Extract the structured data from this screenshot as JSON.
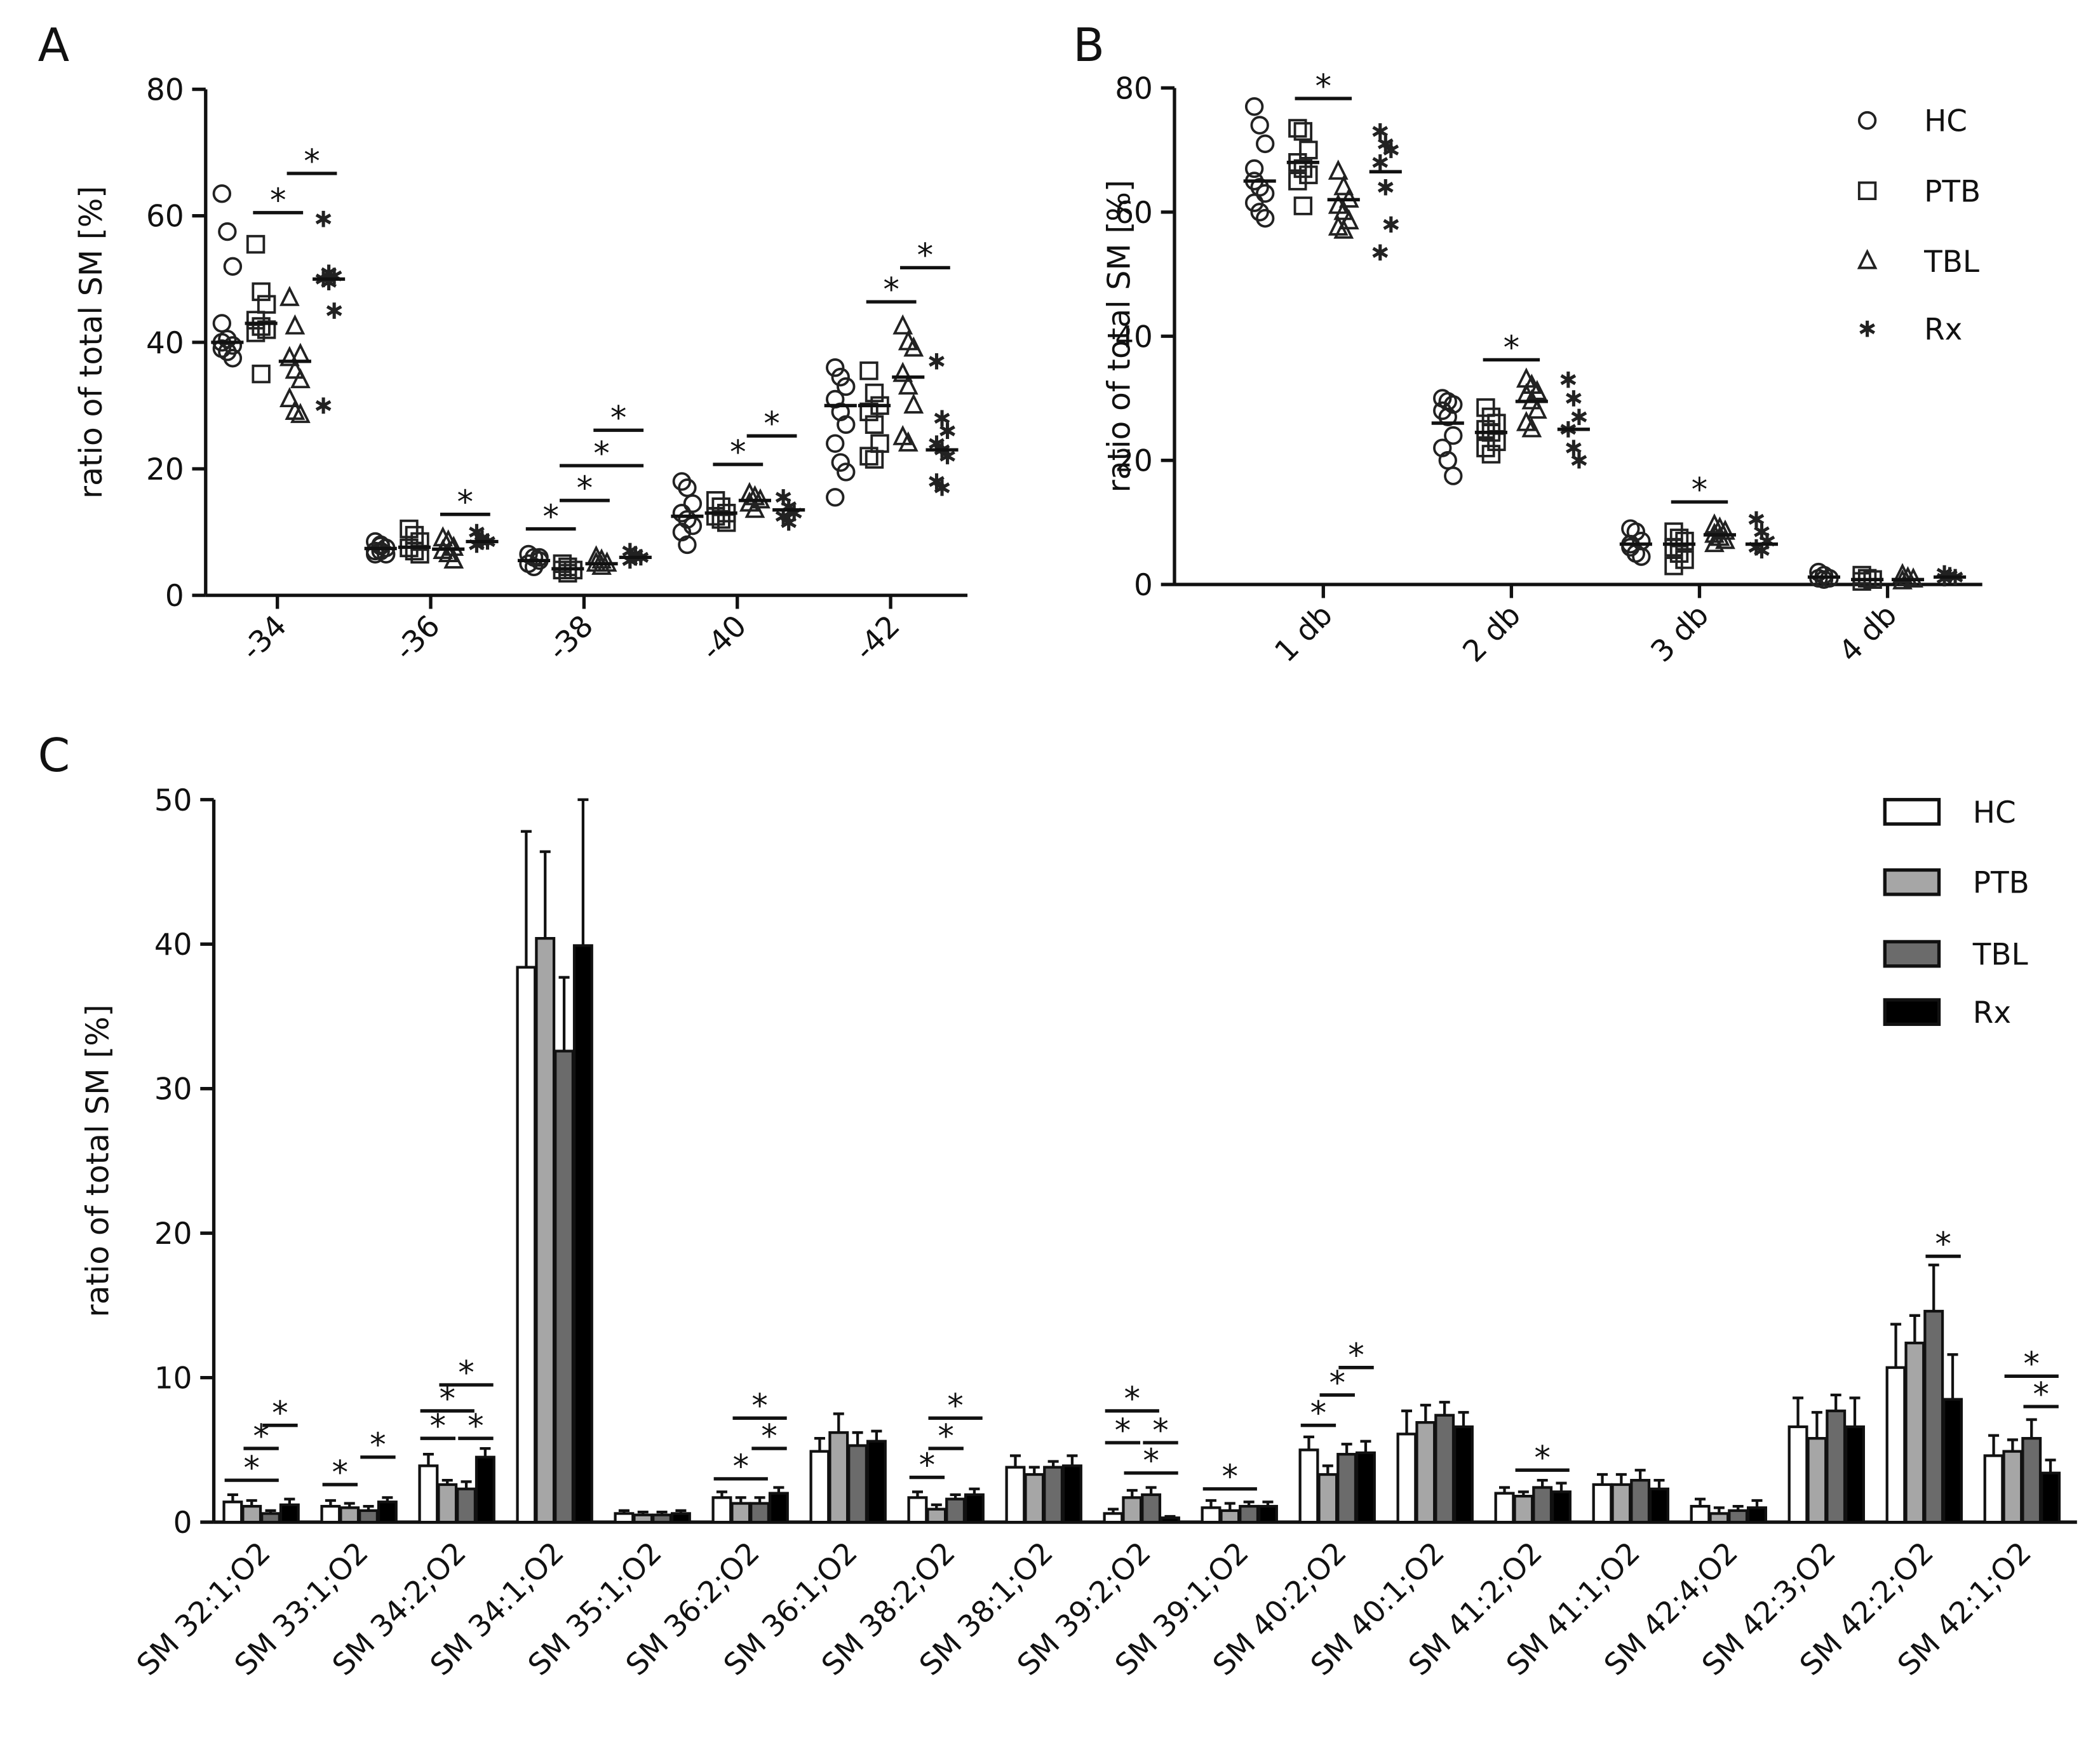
{
  "chart_data": [
    {
      "type": "strip",
      "panel": "A",
      "ylabel": "ratio of total SM [%]",
      "categories": [
        "-34",
        "-36",
        "-38",
        "-40",
        "-42"
      ],
      "ylim": [
        0,
        80
      ],
      "yticks": [
        0,
        20,
        40,
        60,
        80
      ],
      "series": [
        {
          "marker": "circle",
          "color": "#222222",
          "values": [
            [
              63.5,
              57.5,
              52,
              43,
              40.5,
              39.5,
              39,
              38.5,
              37.5,
              40
            ],
            [
              8.5,
              8,
              7.5,
              7,
              7,
              6.5,
              6.5,
              7.8
            ],
            [
              6.5,
              6,
              5.5,
              5,
              4.5,
              6
            ],
            [
              18,
              17,
              14.5,
              13,
              12,
              11,
              10,
              8
            ],
            [
              36,
              34.5,
              33,
              31,
              29,
              27,
              24,
              21,
              19.5,
              15.5
            ]
          ],
          "means": [
            40,
            7.4,
            5.5,
            12.5,
            30
          ]
        },
        {
          "marker": "square",
          "color": "#222222",
          "values": [
            [
              55.5,
              48,
              46,
              43.5,
              42.5,
              42,
              41.5,
              35
            ],
            [
              10.5,
              9.5,
              8.5,
              7.5,
              7,
              6.5
            ],
            [
              5,
              4.5,
              4,
              4,
              3.5
            ],
            [
              15,
              14,
              13,
              12.5,
              12,
              11.5
            ],
            [
              35.5,
              32,
              30,
              29,
              27,
              24,
              22,
              21.5
            ]
          ],
          "means": [
            43,
            7.6,
            4.2,
            13,
            30
          ]
        },
        {
          "marker": "triangle",
          "color": "#222222",
          "values": [
            [
              47,
              42.5,
              38,
              37.5,
              35.5,
              34,
              31,
              29,
              28.5
            ],
            [
              9,
              8.5,
              7.5,
              7,
              6.5,
              5.5
            ],
            [
              6,
              5.5,
              5,
              5,
              4.5
            ],
            [
              16,
              15.5,
              15,
              14.5,
              13.5
            ],
            [
              42.5,
              40,
              39,
              35,
              33,
              30,
              25,
              24
            ]
          ],
          "means": [
            37,
            7.3,
            5,
            15,
            34.5
          ]
        },
        {
          "marker": "asterisk",
          "color": "#222222",
          "values": [
            [
              59.5,
              51,
              50.5,
              50,
              49.5,
              45,
              30
            ],
            [
              10,
              9,
              8.5,
              8,
              8.5
            ],
            [
              7,
              6.5,
              6,
              5.5,
              6
            ],
            [
              15.5,
              14,
              13,
              12.5,
              11.5
            ],
            [
              37,
              28,
              26,
              24,
              23,
              22,
              18,
              17
            ]
          ],
          "means": [
            50,
            8.5,
            6,
            13.5,
            23
          ]
        }
      ],
      "significance": [
        {
          "category": 0,
          "from": 1,
          "to": 2,
          "y": 60.5,
          "label": "*"
        },
        {
          "category": 0,
          "from": 2,
          "to": 3,
          "y": 66.7,
          "label": "*"
        },
        {
          "category": 1,
          "from": 2,
          "to": 3,
          "y": 12.8,
          "label": "*"
        },
        {
          "category": 2,
          "from": 0,
          "to": 1,
          "y": 10.5,
          "label": "*"
        },
        {
          "category": 2,
          "from": 1,
          "to": 2,
          "y": 15,
          "label": "*"
        },
        {
          "category": 2,
          "from": 1,
          "to": 3,
          "y": 20.5,
          "label": "*"
        },
        {
          "category": 2,
          "from": 2,
          "to": 3,
          "y": 26.1,
          "label": "*"
        },
        {
          "category": 3,
          "from": 1,
          "to": 2,
          "y": 20.7,
          "label": "*"
        },
        {
          "category": 3,
          "from": 2,
          "to": 3,
          "y": 25.2,
          "label": "*"
        },
        {
          "category": 4,
          "from": 1,
          "to": 2,
          "y": 46.4,
          "label": "*"
        },
        {
          "category": 4,
          "from": 2,
          "to": 3,
          "y": 51.8,
          "label": "*"
        }
      ]
    },
    {
      "type": "strip",
      "panel": "B",
      "ylabel": "ratio of total SM [%]",
      "categories": [
        "1 db",
        "2 db",
        "3 db",
        "4 db"
      ],
      "ylim": [
        0,
        80
      ],
      "yticks": [
        0,
        20,
        40,
        60,
        80
      ],
      "legend": "upper right",
      "series": [
        {
          "name": "HC",
          "marker": "circle",
          "color": "#222222",
          "values": [
            [
              77,
              74,
              71,
              67,
              64,
              63,
              61.5,
              60,
              59,
              65
            ],
            [
              30,
              29.5,
              29,
              28,
              27,
              24,
              22,
              20,
              17.5
            ],
            [
              9,
              8.5,
              7,
              6,
              5,
              4.5,
              6.5
            ],
            [
              2,
              1.5,
              1,
              1,
              0.8
            ]
          ],
          "means": [
            65,
            26,
            6.5,
            1.2
          ]
        },
        {
          "name": "PTB",
          "marker": "square",
          "color": "#222222",
          "values": [
            [
              73.5,
              73,
              70,
              68,
              67,
              66,
              65,
              61
            ],
            [
              28.5,
              27,
              26,
              25,
              24.5,
              23,
              22,
              21
            ],
            [
              8.5,
              7.5,
              7,
              6,
              5,
              4,
              3
            ],
            [
              1.5,
              1,
              0.8,
              0.5
            ]
          ],
          "means": [
            68,
            24.5,
            6.5,
            0.8
          ]
        },
        {
          "name": "TBL",
          "marker": "triangle",
          "color": "#222222",
          "values": [
            [
              66.5,
              64,
              62,
              61,
              60,
              58.5,
              57.5,
              57
            ],
            [
              33,
              32,
              31,
              30.5,
              29.5,
              28,
              26,
              25
            ],
            [
              9.5,
              9,
              8.5,
              8,
              7.5,
              7,
              6.5
            ],
            [
              1.5,
              1,
              0.8,
              0.5
            ]
          ],
          "means": [
            62,
            29.5,
            8,
            0.8
          ]
        },
        {
          "name": "Rx",
          "marker": "asterisk",
          "color": "#222222",
          "values": [
            [
              73,
              71,
              70,
              68,
              64,
              58,
              53.5
            ],
            [
              33,
              30,
              27,
              25,
              22,
              20
            ],
            [
              10.5,
              8.5,
              7,
              6,
              5.5
            ],
            [
              1.8,
              1.5,
              1.2,
              1
            ]
          ],
          "means": [
            66.5,
            25,
            6.5,
            1.2
          ]
        }
      ],
      "significance": [
        {
          "category": 0,
          "from": 1,
          "to": 2,
          "y": 78.3,
          "label": "*"
        },
        {
          "category": 1,
          "from": 1,
          "to": 2,
          "y": 36.2,
          "label": "*"
        },
        {
          "category": 2,
          "from": 1,
          "to": 2,
          "y": 13.3,
          "label": "*"
        }
      ]
    },
    {
      "type": "bar",
      "panel": "C",
      "ylabel": "ratio of total SM [%]",
      "categories": [
        "SM 32:1;O2",
        "SM 33:1;O2",
        "SM 34:2;O2",
        "SM 34:1;O2",
        "SM 35:1;O2",
        "SM 36:2;O2",
        "SM 36:1;O2",
        "SM 38:2;O2",
        "SM 38:1;O2",
        "SM 39:2;O2",
        "SM 39:1;O2",
        "SM 40:2;O2",
        "SM 40:1;O2",
        "SM 41:2;O2",
        "SM 41:1;O2",
        "SM 42:4;O2",
        "SM 42:3;O2",
        "SM 42:2;O2",
        "SM 42:1;O2"
      ],
      "ylim": [
        0,
        50
      ],
      "yticks": [
        0,
        10,
        20,
        30,
        40,
        50
      ],
      "legend": "upper right",
      "series": [
        {
          "name": "HC",
          "color": "#ffffff",
          "values": [
            1.4,
            1.1,
            3.9,
            38.4,
            0.6,
            1.7,
            4.9,
            1.7,
            3.8,
            0.6,
            1.0,
            5.0,
            6.1,
            2.0,
            2.6,
            1.1,
            6.6,
            10.7,
            4.6
          ],
          "errors": [
            0.5,
            0.4,
            0.8,
            9.4,
            0.2,
            0.4,
            0.9,
            0.4,
            0.8,
            0.3,
            0.5,
            0.9,
            1.6,
            0.4,
            0.7,
            0.5,
            2.0,
            3.0,
            1.4
          ]
        },
        {
          "name": "PTB",
          "color": "#a6a6a6",
          "values": [
            1.1,
            1.0,
            2.6,
            40.4,
            0.5,
            1.3,
            6.2,
            0.9,
            3.3,
            1.7,
            0.8,
            3.3,
            6.9,
            1.8,
            2.6,
            0.6,
            5.8,
            12.4,
            4.9
          ],
          "errors": [
            0.4,
            0.3,
            0.3,
            6.0,
            0.2,
            0.4,
            1.3,
            0.3,
            0.5,
            0.5,
            0.5,
            0.6,
            1.2,
            0.3,
            0.7,
            0.4,
            1.8,
            1.9,
            0.8
          ]
        },
        {
          "name": "TBL",
          "color": "#6b6b6b",
          "values": [
            0.6,
            0.8,
            2.3,
            32.6,
            0.5,
            1.3,
            5.3,
            1.6,
            3.8,
            1.9,
            1.1,
            4.7,
            7.4,
            2.4,
            2.9,
            0.8,
            7.7,
            14.6,
            5.8
          ],
          "errors": [
            0.2,
            0.3,
            0.5,
            5.1,
            0.2,
            0.4,
            0.9,
            0.3,
            0.4,
            0.5,
            0.3,
            0.7,
            0.9,
            0.5,
            0.7,
            0.3,
            1.1,
            3.2,
            1.3
          ]
        },
        {
          "name": "Rx",
          "color": "#000000",
          "values": [
            1.2,
            1.4,
            4.5,
            39.9,
            0.6,
            2.0,
            5.6,
            1.9,
            3.9,
            0.3,
            1.1,
            4.8,
            6.6,
            2.1,
            2.3,
            1.0,
            6.6,
            8.5,
            3.4
          ],
          "errors": [
            0.4,
            0.3,
            0.6,
            10.1,
            0.2,
            0.4,
            0.7,
            0.4,
            0.7,
            0.1,
            0.3,
            0.8,
            1.0,
            0.6,
            0.6,
            0.5,
            2.0,
            3.1,
            0.9
          ]
        }
      ],
      "significance": [
        {
          "category": 0,
          "from": 0,
          "to": 2,
          "y": 2.9,
          "label": "*"
        },
        {
          "category": 0,
          "from": 1,
          "to": 2,
          "y": 5.1,
          "label": "*"
        },
        {
          "category": 0,
          "from": 2,
          "to": 3,
          "y": 6.7,
          "label": "*"
        },
        {
          "category": 1,
          "from": 0,
          "to": 1,
          "y": 2.6,
          "label": "*"
        },
        {
          "category": 1,
          "from": 2,
          "to": 3,
          "y": 4.5,
          "label": "*"
        },
        {
          "category": 2,
          "from": 0,
          "to": 1,
          "y": 5.8,
          "label": "*"
        },
        {
          "category": 2,
          "from": 2,
          "to": 3,
          "y": 5.8,
          "label": "*"
        },
        {
          "category": 2,
          "from": 0,
          "to": 2,
          "y": 7.7,
          "label": "*"
        },
        {
          "category": 2,
          "from": 1,
          "to": 3,
          "y": 9.5,
          "label": "*"
        },
        {
          "category": 5,
          "from": 0,
          "to": 2,
          "y": 3.0,
          "label": "*"
        },
        {
          "category": 5,
          "from": 2,
          "to": 3,
          "y": 5.1,
          "label": "*"
        },
        {
          "category": 5,
          "from": 1,
          "to": 3,
          "y": 7.2,
          "label": "*"
        },
        {
          "category": 7,
          "from": 0,
          "to": 1,
          "y": 3.1,
          "label": "*"
        },
        {
          "category": 7,
          "from": 1,
          "to": 2,
          "y": 5.1,
          "label": "*"
        },
        {
          "category": 7,
          "from": 1,
          "to": 3,
          "y": 7.2,
          "label": "*"
        },
        {
          "category": 9,
          "from": 1,
          "to": 3,
          "y": 3.4,
          "label": "*"
        },
        {
          "category": 9,
          "from": 0,
          "to": 1,
          "y": 5.5,
          "label": "*"
        },
        {
          "category": 9,
          "from": 2,
          "to": 3,
          "y": 5.5,
          "label": "*"
        },
        {
          "category": 9,
          "from": 0,
          "to": 2,
          "y": 7.7,
          "label": "*"
        },
        {
          "category": 10,
          "from": 0,
          "to": 2,
          "y": 2.3,
          "label": "*"
        },
        {
          "category": 11,
          "from": 0,
          "to": 1,
          "y": 6.7,
          "label": "*"
        },
        {
          "category": 11,
          "from": 1,
          "to": 2,
          "y": 8.8,
          "label": "*"
        },
        {
          "category": 11,
          "from": 2,
          "to": 3,
          "y": 10.7,
          "label": "*"
        },
        {
          "category": 13,
          "from": 1,
          "to": 3,
          "y": 3.6,
          "label": "*"
        },
        {
          "category": 17,
          "from": 2,
          "to": 3,
          "y": 18.4,
          "label": "*"
        },
        {
          "category": 18,
          "from": 2,
          "to": 3,
          "y": 8.0,
          "label": "*"
        },
        {
          "category": 18,
          "from": 1,
          "to": 3,
          "y": 10.1,
          "label": "*"
        }
      ]
    }
  ]
}
